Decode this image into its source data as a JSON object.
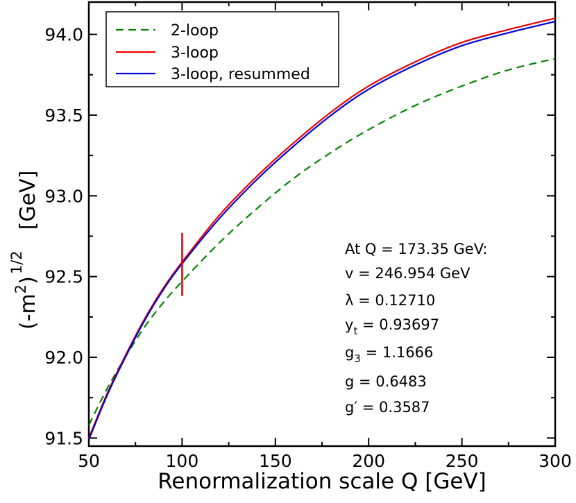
{
  "chart_data": {
    "type": "line",
    "xlabel": "Renormalization scale Q  [GeV]",
    "ylabel": {
      "base": "(-m",
      "sq": "2",
      "close": ")",
      "power": "1/2",
      "unit": "[GeV]"
    },
    "xlim": [
      50,
      300
    ],
    "ylim": [
      91.45,
      94.2
    ],
    "xticks": [
      50,
      100,
      150,
      200,
      250,
      300
    ],
    "yticks": [
      91.5,
      92.0,
      92.5,
      93.0,
      93.5,
      94.0
    ],
    "ytick_labels": [
      "91.5",
      "92.0",
      "92.5",
      "93.0",
      "93.5",
      "94.0"
    ],
    "series": [
      {
        "name": "2-loop",
        "color": "#008800",
        "style": "dashed",
        "x": [
          50,
          60,
          70,
          80,
          90,
          100,
          120,
          140,
          160,
          180,
          200,
          225,
          250,
          275,
          300
        ],
        "y": [
          91.58,
          91.81,
          92.01,
          92.19,
          92.34,
          92.47,
          92.71,
          92.92,
          93.11,
          93.27,
          93.41,
          93.56,
          93.68,
          93.78,
          93.85
        ]
      },
      {
        "name": "3-loop",
        "color": "#ee0000",
        "style": "solid",
        "x": [
          50,
          60,
          70,
          80,
          90,
          100,
          120,
          140,
          160,
          180,
          200,
          225,
          250,
          275,
          300
        ],
        "y": [
          91.5,
          91.78,
          92.02,
          92.24,
          92.43,
          92.59,
          92.88,
          93.12,
          93.33,
          93.52,
          93.68,
          93.83,
          93.95,
          94.03,
          94.1
        ]
      },
      {
        "name": "3-loop, resummed",
        "color": "#0000dd",
        "style": "solid",
        "x": [
          50,
          60,
          70,
          80,
          90,
          100,
          120,
          140,
          160,
          180,
          200,
          225,
          250,
          275,
          300
        ],
        "y": [
          91.49,
          91.77,
          92.01,
          92.23,
          92.42,
          92.58,
          92.86,
          93.1,
          93.31,
          93.5,
          93.66,
          93.81,
          93.93,
          94.01,
          94.08
        ]
      }
    ],
    "marker": {
      "color": "#ee0000",
      "x": 100,
      "y_range": [
        92.38,
        92.77
      ]
    },
    "legend": {
      "location": "top-left",
      "entries": [
        "2-loop",
        "3-loop",
        "3-loop, resummed"
      ]
    },
    "annotation": {
      "header": "At Q = 173.35 GeV:",
      "v": "v = 246.954 GeV",
      "lambda": "λ = 0.12710",
      "yt_base": "y",
      "yt_sub": "t",
      "yt_val": " = 0.93697",
      "g3_base": "g",
      "g3_sub": "3",
      "g3_val": " = 1.1666",
      "g": "g = 0.6483",
      "gprime": "g′ = 0.3587"
    }
  }
}
